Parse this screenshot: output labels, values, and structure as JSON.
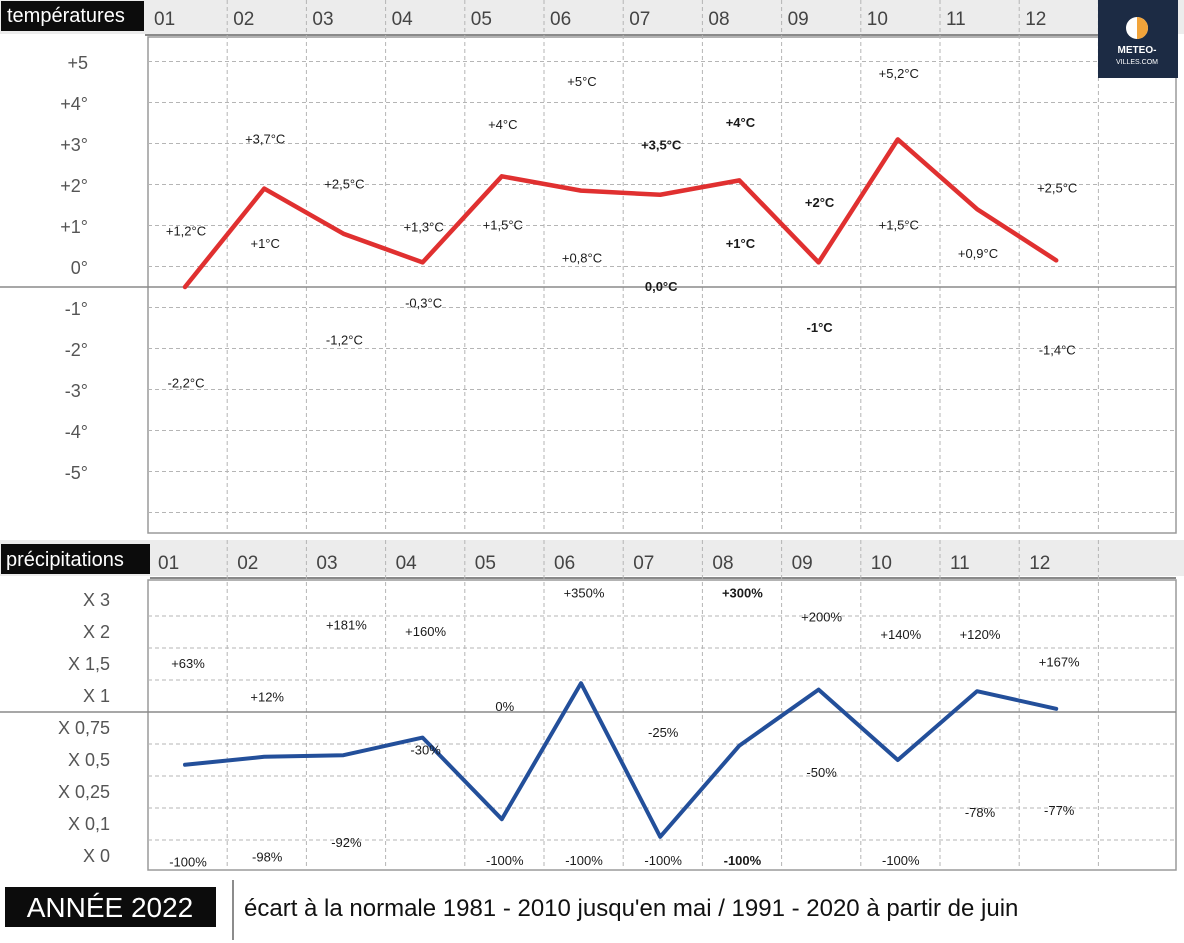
{
  "brand": {
    "name": "METEO-",
    "sub": "VILLES.COM",
    "accent": "#f2a43a",
    "bg": "#1c2b44"
  },
  "footer": {
    "year_label": "ANNÉE 2022",
    "note": "écart à la normale 1981 - 2010 jusqu'en mai / 1991 - 2020 à partir de juin"
  },
  "months": [
    "01",
    "02",
    "03",
    "04",
    "05",
    "06",
    "07",
    "08",
    "09",
    "10",
    "11",
    "12"
  ],
  "chart_data": [
    {
      "type": "line",
      "title": "températures",
      "categories": [
        "01",
        "02",
        "03",
        "04",
        "05",
        "06",
        "07",
        "08",
        "09",
        "10",
        "11",
        "12"
      ],
      "ytick_labels": [
        "+5",
        "+4°",
        "+3°",
        "+2°",
        "+1°",
        "0°",
        "-1°",
        "-2°",
        "-3°",
        "-4°",
        "-5°"
      ],
      "ylim": [
        -5,
        5
      ],
      "color": "#e03030",
      "series": [
        {
          "values": [
            0.0,
            2.4,
            1.3,
            0.6,
            2.7,
            2.35,
            2.25,
            2.6,
            0.6,
            3.6,
            1.9,
            0.65
          ]
        }
      ],
      "annotations": [
        {
          "month": 1,
          "text": "+1,2°C",
          "y": 1.35
        },
        {
          "month": 1,
          "text": "-2,2°C",
          "y": -2.35
        },
        {
          "month": 2,
          "text": "+3,7°C",
          "y": 3.6
        },
        {
          "month": 2,
          "text": "+1°C",
          "y": 1.05
        },
        {
          "month": 3,
          "text": "+2,5°C",
          "y": 2.5
        },
        {
          "month": 3,
          "text": "-1,2°C",
          "y": -1.3
        },
        {
          "month": 4,
          "text": "+1,3°C",
          "y": 1.45
        },
        {
          "month": 4,
          "text": "-0,3°C",
          "y": -0.4
        },
        {
          "month": 5,
          "text": "+4°C",
          "y": 3.95
        },
        {
          "month": 5,
          "text": "+1,5°C",
          "y": 1.5
        },
        {
          "month": 6,
          "text": "+5°C",
          "y": 5.0
        },
        {
          "month": 6,
          "text": "+0,8°C",
          "y": 0.7
        },
        {
          "month": 7,
          "text": "+3,5°C",
          "y": 3.45,
          "bold": true
        },
        {
          "month": 7,
          "text": "0,0°C",
          "y": 0.0,
          "bold": true
        },
        {
          "month": 8,
          "text": "+4°C",
          "y": 4.0,
          "bold": true
        },
        {
          "month": 8,
          "text": "+1°C",
          "y": 1.05,
          "bold": true
        },
        {
          "month": 9,
          "text": "+2°C",
          "y": 2.05,
          "bold": true
        },
        {
          "month": 9,
          "text": "-1°C",
          "y": -1.0,
          "bold": true
        },
        {
          "month": 10,
          "text": "+5,2°C",
          "y": 5.2
        },
        {
          "month": 10,
          "text": "+1,5°C",
          "y": 1.5
        },
        {
          "month": 11,
          "text": "+0,9°C",
          "y": 0.8
        },
        {
          "month": 12,
          "text": "+2,5°C",
          "y": 2.4
        },
        {
          "month": 12,
          "text": "-1,4°C",
          "y": -1.55
        }
      ]
    },
    {
      "type": "line",
      "title": "précipitations",
      "categories": [
        "01",
        "02",
        "03",
        "04",
        "05",
        "06",
        "07",
        "08",
        "09",
        "10",
        "11",
        "12"
      ],
      "ytick_labels": [
        "X 3",
        "X 2",
        "X 1,5",
        "X 1",
        "X 0,75",
        "X 0,5",
        "X 0,25",
        "X 0,1",
        "X 0"
      ],
      "ylim": [
        0,
        8
      ],
      "color": "#234f9a",
      "series": [
        {
          "values": [
            2.85,
            3.1,
            3.15,
            3.7,
            1.15,
            5.4,
            0.6,
            3.45,
            5.2,
            3.0,
            5.15,
            4.6
          ]
        }
      ],
      "annotations": [
        {
          "month": 1,
          "text": "+63%",
          "y": 6.0
        },
        {
          "month": 1,
          "text": "-100%",
          "y": -0.2
        },
        {
          "month": 2,
          "text": "+12%",
          "y": 4.95
        },
        {
          "month": 2,
          "text": "-98%",
          "y": -0.05
        },
        {
          "month": 3,
          "text": "+181%",
          "y": 7.2
        },
        {
          "month": 3,
          "text": "-92%",
          "y": 0.4
        },
        {
          "month": 4,
          "text": "+160%",
          "y": 7.0
        },
        {
          "month": 4,
          "text": "-30%",
          "y": 3.3
        },
        {
          "month": 5,
          "text": "0%",
          "y": 4.65
        },
        {
          "month": 5,
          "text": "-100%",
          "y": -0.15
        },
        {
          "month": 6,
          "text": "+350%",
          "y": 8.2
        },
        {
          "month": 6,
          "text": "-100%",
          "y": -0.15
        },
        {
          "month": 7,
          "text": "-25%",
          "y": 3.85
        },
        {
          "month": 7,
          "text": "-100%",
          "y": -0.15
        },
        {
          "month": 8,
          "text": "+300%",
          "y": 8.2,
          "bold": true
        },
        {
          "month": 8,
          "text": "-100%",
          "y": -0.15,
          "bold": true
        },
        {
          "month": 9,
          "text": "+200%",
          "y": 7.45
        },
        {
          "month": 9,
          "text": "-50%",
          "y": 2.6
        },
        {
          "month": 10,
          "text": "+140%",
          "y": 6.9
        },
        {
          "month": 10,
          "text": "-100%",
          "y": -0.15
        },
        {
          "month": 11,
          "text": "+120%",
          "y": 6.9
        },
        {
          "month": 11,
          "text": "-78%",
          "y": 1.35
        },
        {
          "month": 12,
          "text": "+167%",
          "y": 6.05
        },
        {
          "month": 12,
          "text": "-77%",
          "y": 1.4
        }
      ]
    }
  ]
}
